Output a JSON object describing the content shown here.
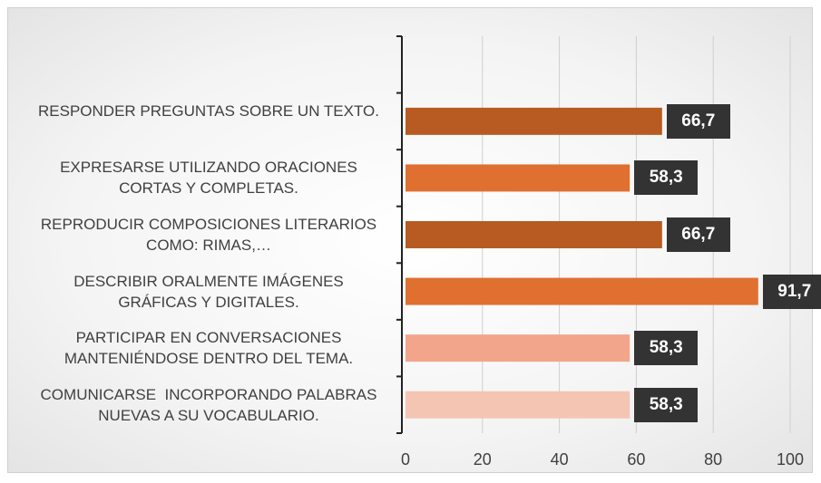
{
  "chart_data": {
    "type": "barh",
    "categories": [
      null,
      "RESPONDER PREGUNTAS SOBRE UN TEXTO.",
      "EXPRESARSE UTILIZANDO ORACIONES CORTAS Y COMPLETAS.",
      "REPRODUCIR COMPOSICIONES LITERARIOS COMO: RIMAS,…",
      "DESCRIBIR ORALMENTE IMÁGENES GRÁFICAS Y DIGITALES.",
      "PARTICIPAR EN CONVERSACIONES MANTENIÉNDOSE DENTRO DEL TEMA.",
      "COMUNICARSE  INCORPORANDO PALABRAS NUEVAS A SU VOCABULARIO."
    ],
    "values": [
      null,
      66.7,
      58.3,
      66.7,
      91.7,
      58.3,
      58.3
    ],
    "value_labels": [
      null,
      "66,7",
      "58,3",
      "66,7",
      "91,7",
      "58,3",
      "58,3"
    ],
    "colors": [
      null,
      "#b85b22",
      "#e07030",
      "#b85b22",
      "#e07030",
      "#f2a58a",
      "#f4c5b2"
    ],
    "xlim": [
      0,
      100
    ],
    "xticks": [
      0,
      20,
      40,
      60,
      80,
      100
    ],
    "grid": true
  }
}
